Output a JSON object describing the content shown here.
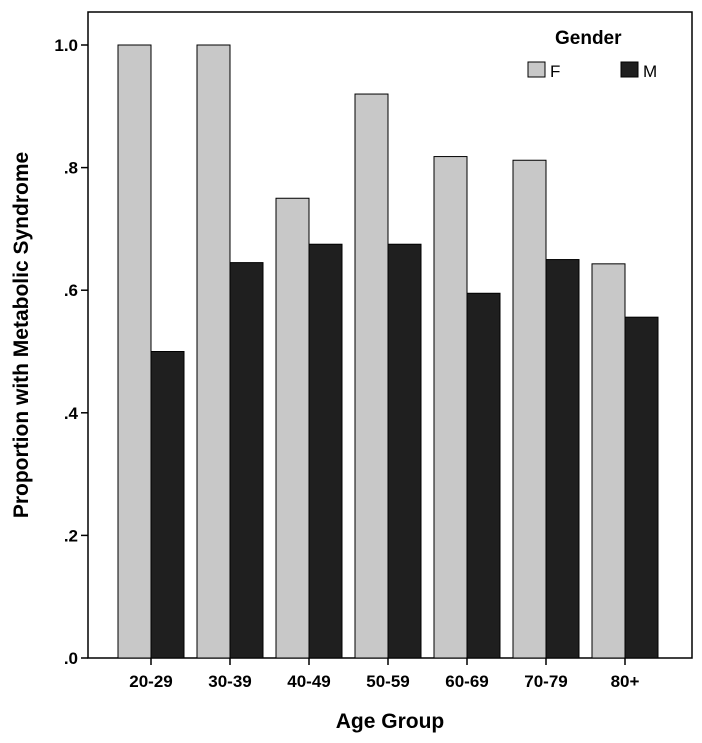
{
  "chart_data": {
    "type": "bar",
    "title": "",
    "xlabel": "Age Group",
    "ylabel": "Proportion with Metabolic Syndrome",
    "ylim": [
      0,
      1.05
    ],
    "yticks": [
      {
        "value": 0.0,
        "label": ".0"
      },
      {
        "value": 0.2,
        "label": ".2"
      },
      {
        "value": 0.4,
        "label": ".4"
      },
      {
        "value": 0.6,
        "label": ".6"
      },
      {
        "value": 0.8,
        "label": ".8"
      },
      {
        "value": 1.0,
        "label": "1.0"
      }
    ],
    "categories": [
      "20-29",
      "30-39",
      "40-49",
      "50-59",
      "60-69",
      "70-79",
      "80+"
    ],
    "legend": {
      "title": "Gender",
      "placement": "top-right"
    },
    "grid": false,
    "series": [
      {
        "name": "F",
        "color": "#c8c8c8",
        "values": [
          1.0,
          1.0,
          0.75,
          0.92,
          0.818,
          0.812,
          0.643
        ]
      },
      {
        "name": "M",
        "color": "#1f1f1f",
        "values": [
          0.5,
          0.645,
          0.675,
          0.675,
          0.595,
          0.65,
          0.556
        ]
      }
    ]
  }
}
